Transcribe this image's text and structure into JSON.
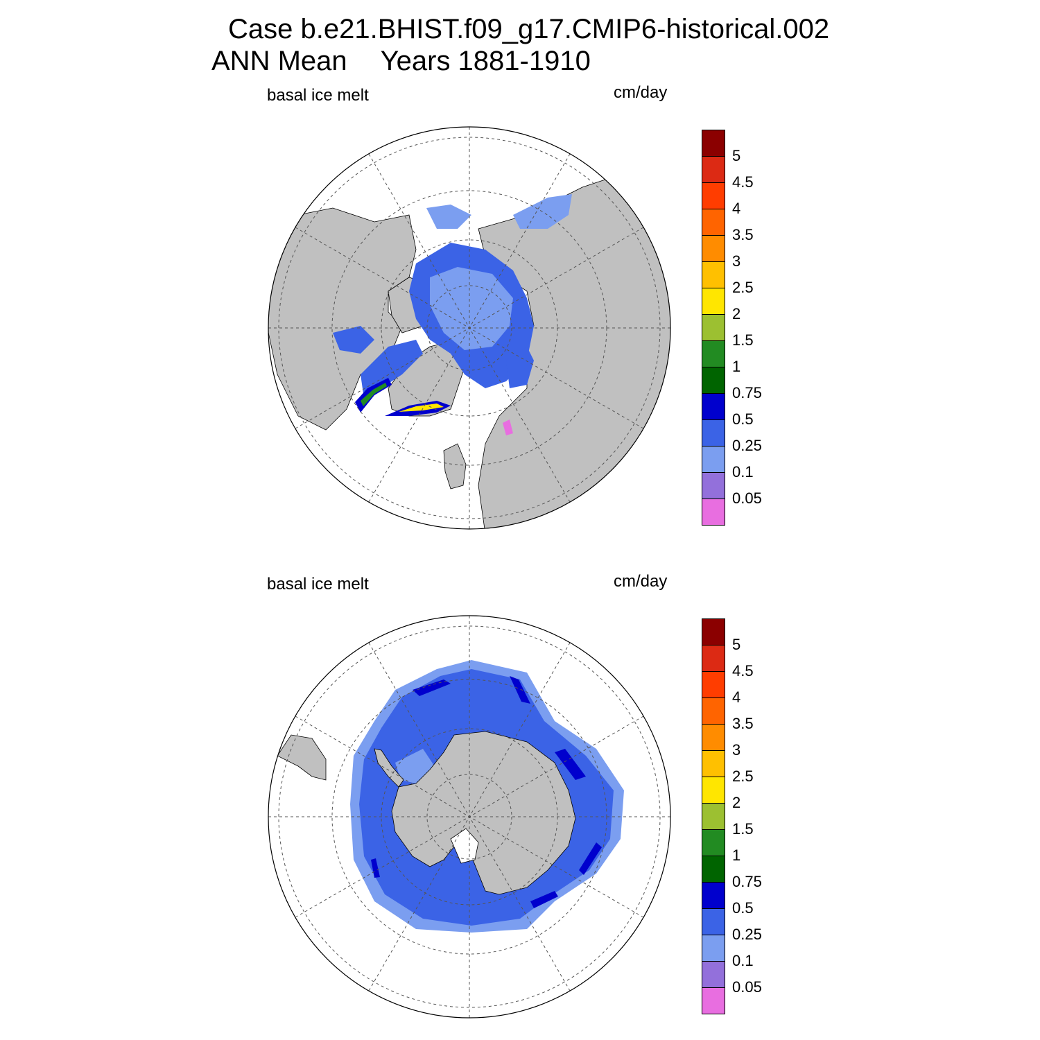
{
  "title": {
    "line1": "Case b.e21.BHIST.f09_g17.CMIP6-historical.002",
    "line2_left": "ANN Mean",
    "line2_right": "Years 1881-1910"
  },
  "panels": [
    {
      "id": "nh",
      "hemisphere": "northern",
      "left_label": "basal ice melt",
      "right_label": "cm/day"
    },
    {
      "id": "sh",
      "hemisphere": "southern",
      "left_label": "basal ice melt",
      "right_label": "cm/day"
    }
  ],
  "colorbar": {
    "units": "cm/day",
    "levels": [
      "5",
      "4.5",
      "4",
      "3.5",
      "3",
      "2.5",
      "2",
      "1.5",
      "1",
      "0.75",
      "0.5",
      "0.25",
      "0.1",
      "0.05"
    ],
    "colors_top_to_bottom": [
      "#8b0000",
      "#dc2a14",
      "#ff3d00",
      "#ff6400",
      "#ff8c00",
      "#ffc000",
      "#ffe600",
      "#9cc031",
      "#228b22",
      "#006400",
      "#0000cd",
      "#3b63e6",
      "#7b9ef0",
      "#9370db",
      "#e86ee0"
    ]
  },
  "map_colors": {
    "land": "#c0c0c0",
    "ocean": "#ffffff",
    "gridline": "#555555"
  }
}
